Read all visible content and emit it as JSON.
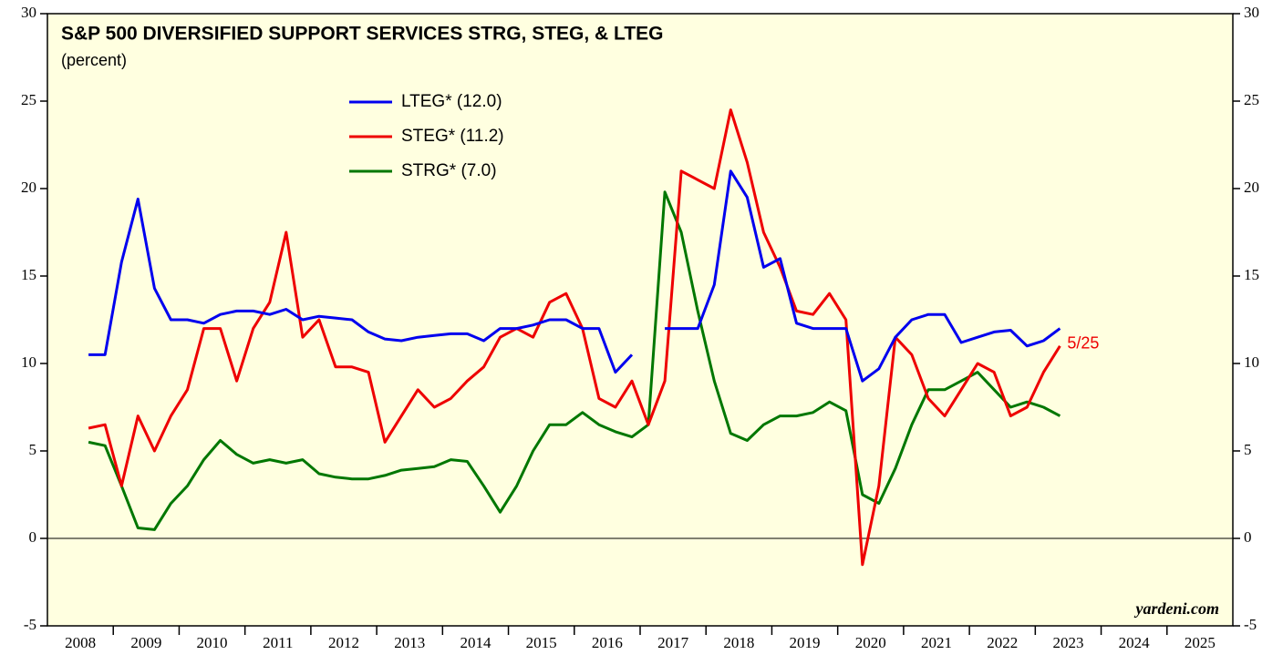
{
  "chart_data": {
    "type": "line",
    "title": "S&P 500 DIVERSIFIED SUPPORT SERVICES STRG, STEG, & LTEG",
    "subtitle": "(percent)",
    "annotation": "5/25",
    "source": "yardeni.com",
    "x": [
      2008.625,
      2008.875,
      2009.125,
      2009.375,
      2009.625,
      2009.875,
      2010.125,
      2010.375,
      2010.625,
      2010.875,
      2011.125,
      2011.375,
      2011.625,
      2011.875,
      2012.125,
      2012.375,
      2012.625,
      2012.875,
      2013.125,
      2013.375,
      2013.625,
      2013.875,
      2014.125,
      2014.375,
      2014.625,
      2014.875,
      2015.125,
      2015.375,
      2015.625,
      2015.875,
      2016.125,
      2016.375,
      2016.625,
      2016.875,
      2017.125,
      2017.375,
      2017.625,
      2017.875,
      2018.125,
      2018.375,
      2018.625,
      2018.875,
      2019.125,
      2019.375,
      2019.625,
      2019.875,
      2020.125,
      2020.375,
      2020.625,
      2020.875,
      2021.125,
      2021.375,
      2021.625,
      2021.875,
      2022.125,
      2022.375,
      2022.625,
      2022.875,
      2023.125,
      2023.375
    ],
    "series": [
      {
        "name": "LTEG* (12.0)",
        "color": "#0000ee",
        "values": [
          10.5,
          10.5,
          15.8,
          19.4,
          14.3,
          12.5,
          12.5,
          12.3,
          12.8,
          13.0,
          13.0,
          12.8,
          13.1,
          12.5,
          12.7,
          12.6,
          12.5,
          11.8,
          11.4,
          11.3,
          11.5,
          11.6,
          11.7,
          11.7,
          11.3,
          12.0,
          12.0,
          12.2,
          12.5,
          12.5,
          12.0,
          12.0,
          9.5,
          10.5,
          null,
          12.0,
          12.0,
          12.0,
          14.5,
          21.0,
          19.5,
          15.5,
          16.0,
          12.3,
          12.0,
          12.0,
          12.0,
          9.0,
          9.7,
          11.5,
          12.5,
          12.8,
          12.8,
          11.2,
          11.5,
          11.8,
          11.9,
          11.0,
          11.3,
          12.0
        ]
      },
      {
        "name": "STEG* (11.2)",
        "color": "#ee0000",
        "values": [
          6.3,
          6.5,
          3.0,
          7.0,
          5.0,
          7.0,
          8.5,
          12.0,
          12.0,
          9.0,
          12.0,
          13.5,
          17.5,
          11.5,
          12.5,
          9.8,
          9.8,
          9.5,
          5.5,
          7.0,
          8.5,
          7.5,
          8.0,
          9.0,
          9.8,
          11.5,
          12.0,
          11.5,
          13.5,
          14.0,
          12.0,
          8.0,
          7.5,
          9.0,
          6.5,
          9.0,
          21.0,
          20.5,
          20.0,
          24.5,
          21.5,
          17.5,
          15.5,
          13.0,
          12.8,
          14.0,
          12.5,
          -1.5,
          3.0,
          11.5,
          10.5,
          8.0,
          7.0,
          8.5,
          10.0,
          9.5,
          7.0,
          7.5,
          9.5,
          11.0
        ]
      },
      {
        "name": "STRG* (7.0)",
        "color": "#007700",
        "values": [
          5.5,
          5.3,
          3.0,
          0.6,
          0.5,
          2.0,
          3.0,
          4.5,
          5.6,
          4.8,
          4.3,
          4.5,
          4.3,
          4.5,
          3.7,
          3.5,
          3.4,
          3.4,
          3.6,
          3.9,
          4.0,
          4.1,
          4.5,
          4.4,
          3.0,
          1.5,
          3.0,
          5.0,
          6.5,
          6.5,
          7.2,
          6.5,
          6.1,
          5.8,
          6.5,
          19.8,
          17.5,
          13.0,
          9.0,
          6.0,
          5.6,
          6.5,
          7.0,
          7.0,
          7.2,
          7.8,
          7.3,
          2.5,
          2.0,
          4.0,
          6.5,
          8.5,
          8.5,
          9.0,
          9.5,
          8.5,
          7.5,
          7.8,
          7.5,
          7.0
        ]
      }
    ],
    "xlim": [
      2008,
      2026
    ],
    "xticks": [
      {
        "value": 2008.5,
        "label": "2008"
      },
      {
        "value": 2009.5,
        "label": "2009"
      },
      {
        "value": 2010.5,
        "label": "2010"
      },
      {
        "value": 2011.5,
        "label": "2011"
      },
      {
        "value": 2012.5,
        "label": "2012"
      },
      {
        "value": 2013.5,
        "label": "2013"
      },
      {
        "value": 2014.5,
        "label": "2014"
      },
      {
        "value": 2015.5,
        "label": "2015"
      },
      {
        "value": 2016.5,
        "label": "2016"
      },
      {
        "value": 2017.5,
        "label": "2017"
      },
      {
        "value": 2018.5,
        "label": "2018"
      },
      {
        "value": 2019.5,
        "label": "2019"
      },
      {
        "value": 2020.5,
        "label": "2020"
      },
      {
        "value": 2021.5,
        "label": "2021"
      },
      {
        "value": 2022.5,
        "label": "2022"
      },
      {
        "value": 2023.5,
        "label": "2023"
      },
      {
        "value": 2024.5,
        "label": "2024"
      },
      {
        "value": 2025.5,
        "label": "2025"
      }
    ],
    "ylim": [
      -5,
      30
    ],
    "yticks": [
      -5,
      0,
      5,
      10,
      15,
      20,
      25,
      30
    ],
    "y2lim": [
      -5,
      30
    ],
    "y2ticks": [
      -5,
      0,
      5,
      10,
      15,
      20,
      25,
      30
    ]
  }
}
